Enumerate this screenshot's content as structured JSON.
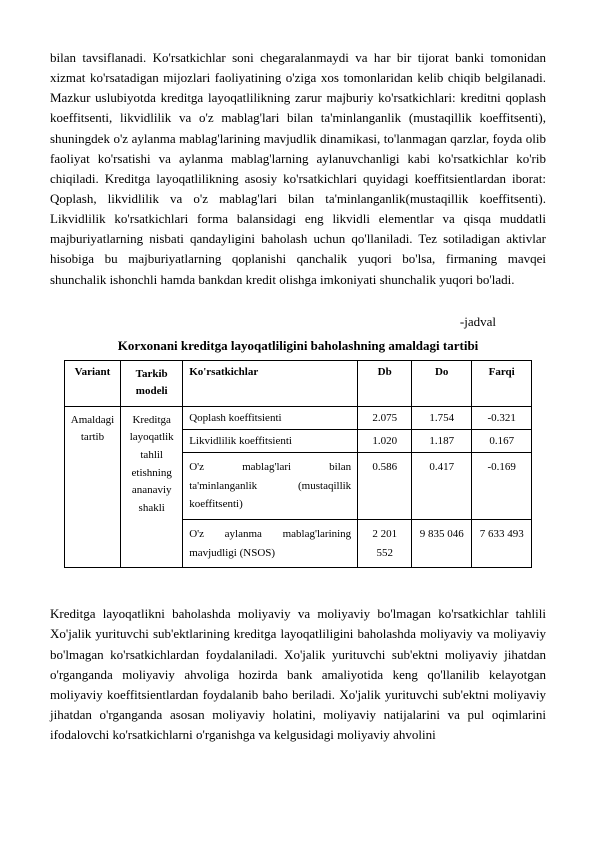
{
  "paragraph1": "bilan tavsiflanadi. Ko'rsatkichlar soni chegaralanmaydi va har bir tijorat banki tomonidan xizmat ko'rsatadigan mijozlari faoliyatining o'ziga xos tomonlaridan kelib chiqib belgilanadi. Mazkur uslubiyotda kreditga layoqatlilikning zarur majburiy ko'rsatkichlari: kreditni qoplash koeffitsenti, likvidlilik va o'z mablag'lari bilan ta'minlanganlik (mustaqillik koeffitsenti), shuningdek o'z aylanma mablag'larining mavjudlik dinamikasi, to'lanmagan qarzlar, foyda olib faoliyat ko'rsatishi va aylanma mablag'larning aylanuvchanligi kabi ko'rsatkichlar ko'rib chiqiladi. Kreditga layoqatlilikning asosiy ko'rsatkichlari quyidagi koeffitsientlardan iborat: Qoplash, likvidlilik va o'z mablag'lari bilan ta'minlanganlik(mustaqillik koeffitsenti). Likvidlilik ko'rsatkichlari forma balansidagi eng likvidli elementlar va qisqa muddatli majburiyatlarning nisbati qandayligini baholash uchun qo'llaniladi. Tez sotiladigan aktivlar hisobiga bu majburiyatlarning qoplanishi qanchalik yuqori bo'lsa, firmaning mavqei shunchalik ishonchli hamda bankdan kredit olishga imkoniyati shunchalik yuqori bo'ladi.",
  "jadval_label": "-jadval",
  "table_title": "Korxonani kreditga layoqatliligini baholashning amaldagi tartibi",
  "table": {
    "headers": {
      "variant": "Variant",
      "tarkib_line1": "Tarkib",
      "tarkib_line2": "modeli",
      "korsatkichlar": "Ko'rsatkichlar",
      "db": "Db",
      "do": "Do",
      "farqi": "Farqi"
    },
    "col1_line1": "Amaldagi",
    "col1_line2": "tartib",
    "col2_line1": "Kreditga",
    "col2_line2": "layoqatlik",
    "col2_line3": "tahlil",
    "col2_line4": "etishning",
    "col2_line5": "ananaviy",
    "col2_line6": "shakli",
    "row1": {
      "name": "Qoplash koeffitsienti",
      "db": "2.075",
      "do": "1.754",
      "farqi": "-0.321"
    },
    "row2": {
      "name": "Likvidlilik koeffitsienti",
      "db": "1.020",
      "do": "1.187",
      "farqi": "0.167"
    },
    "row3": {
      "name": "O'z mablag'lari bilan ta'minlanganlik (mustaqillik koeffitsenti)",
      "db": "0.586",
      "do": "0.417",
      "farqi": "-0.169"
    },
    "row4": {
      "name": "O'z aylanma mablag'larining mavjudligi (NSOS)",
      "db": "2 201 552",
      "do": "9 835 046",
      "farqi": "7 633 493"
    }
  },
  "paragraph2": "Kreditga layoqatlikni baholashda moliyaviy va moliyaviy bo'lmagan ko'rsatkichlar tahlili Xo'jalik yurituvchi sub'ektlarining kreditga layoqatliligini baholashda moliyaviy va moliyaviy bo'lmagan ko'rsatkichlardan foydalaniladi. Xo'jalik yurituvchi sub'ektni moliyaviy jihatdan o'rganganda moliyaviy ahvoliga hozirda bank amaliyotida keng qo'llanilib kelayotgan moliyaviy koeffitsientlardan foydalanib baho beriladi. Xo'jalik yurituvchi sub'ektni moliyaviy jihatdan o'rganganda asosan moliyaviy holatini, moliyaviy natijalarini va pul oqimlarini ifodalovchi ko'rsatkichlarni o'rganishga va kelgusidagi moliyaviy ahvolini"
}
